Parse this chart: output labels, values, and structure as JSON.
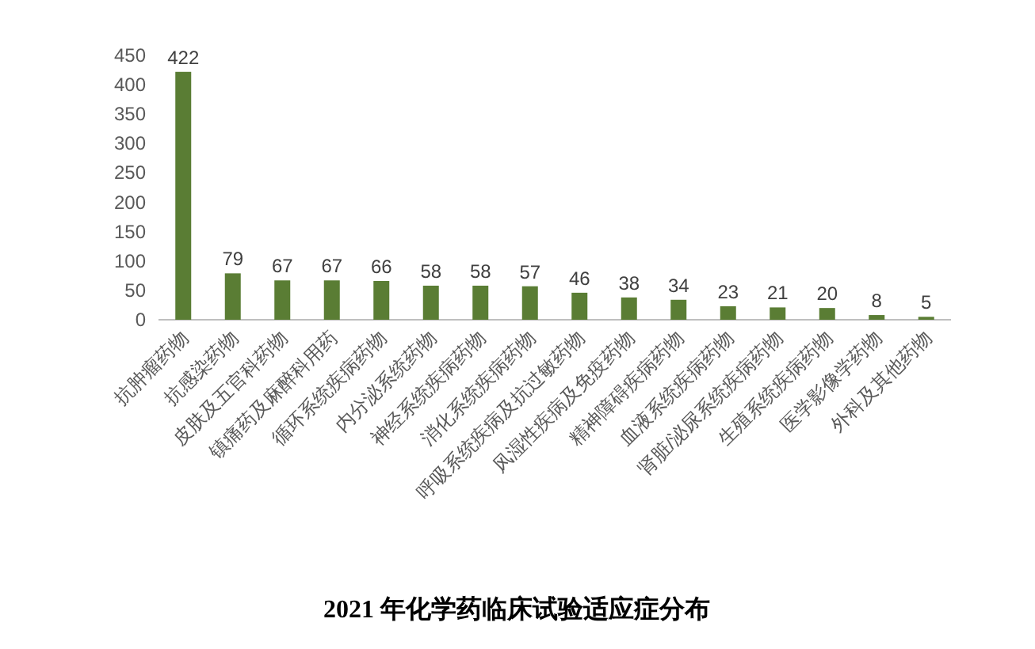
{
  "chart_data": {
    "type": "bar",
    "title": "2021 年化学药临床试验适应症分布",
    "categories": [
      "抗肿瘤药物",
      "抗感染药物",
      "皮肤及五官科药物",
      "镇痛药及麻醉科用药",
      "循环系统疾病药物",
      "内分泌系统药物",
      "神经系统疾病药物",
      "消化系统疾病药物",
      "呼吸系统疾病及抗过敏药物",
      "风湿性疾病及免疫药物",
      "精神障碍疾病药物",
      "血液系统疾病药物",
      "肾脏/泌尿系统疾病药物",
      "生殖系统疾病药物",
      "医学影像学药物",
      "外科及其他药物"
    ],
    "values": [
      422,
      79,
      67,
      67,
      66,
      58,
      58,
      57,
      46,
      38,
      34,
      23,
      21,
      20,
      8,
      5
    ],
    "color": "#5a7d34",
    "ylim": [
      0,
      450
    ],
    "yticks": [
      0,
      50,
      100,
      150,
      200,
      250,
      300,
      350,
      400,
      450
    ],
    "data_labels": true
  }
}
